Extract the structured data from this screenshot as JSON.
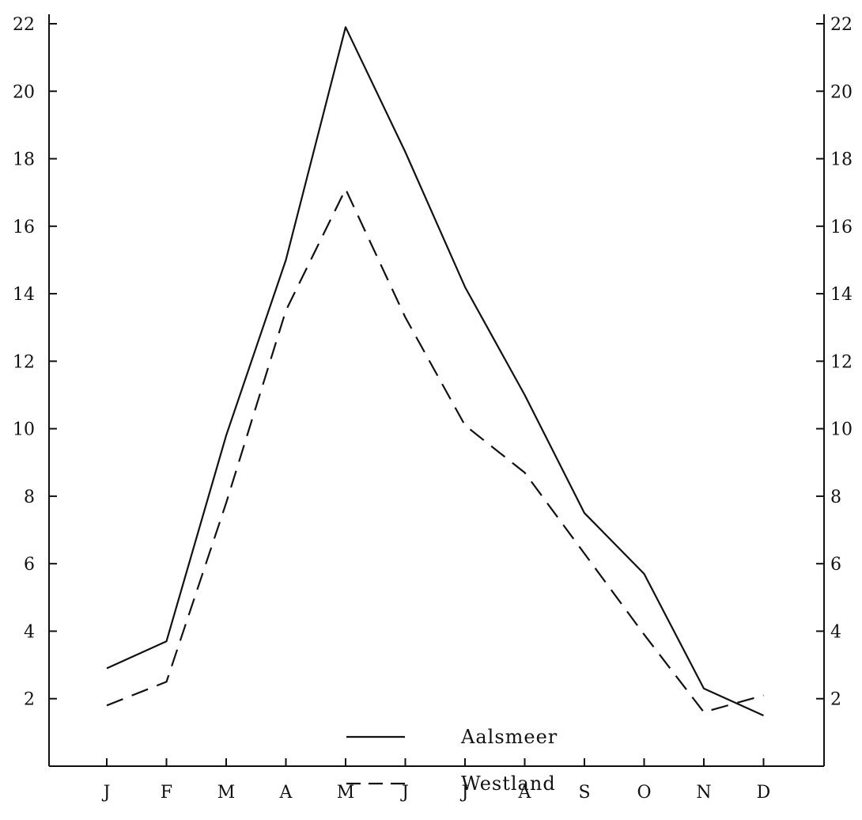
{
  "chart_data": {
    "type": "line",
    "categories": [
      "J",
      "F",
      "M",
      "A",
      "M",
      "J",
      "J",
      "A",
      "S",
      "O",
      "N",
      "D"
    ],
    "series": [
      {
        "name": "Aalsmeer",
        "style": "solid",
        "values": [
          2.9,
          3.7,
          9.8,
          15.0,
          21.9,
          18.2,
          14.2,
          11.0,
          7.5,
          5.7,
          2.3,
          1.5
        ]
      },
      {
        "name": "Westland",
        "style": "dashed",
        "values": [
          1.8,
          2.5,
          7.8,
          13.5,
          17.1,
          13.3,
          10.1,
          8.7,
          6.3,
          3.9,
          1.6,
          2.1
        ]
      }
    ],
    "ylim": [
      0,
      22
    ],
    "yticks": [
      2,
      4,
      6,
      8,
      10,
      12,
      14,
      16,
      18,
      20,
      22
    ],
    "y_axis_both_sides": true,
    "grid": false,
    "legend_position": "bottom-center",
    "title": "",
    "xlabel": "",
    "ylabel": ""
  }
}
